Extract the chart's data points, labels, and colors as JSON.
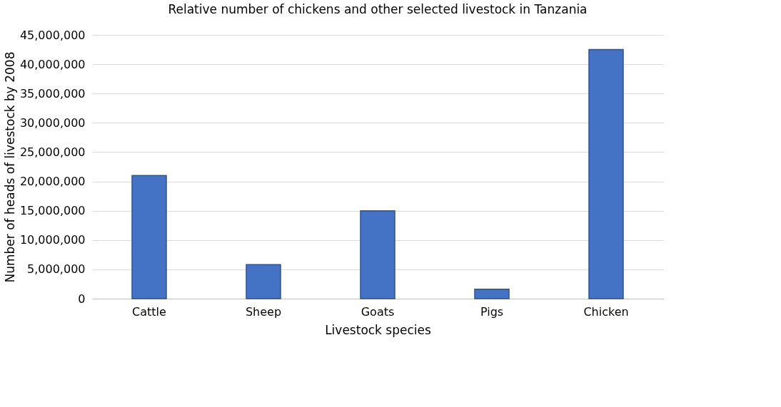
{
  "chart_data": {
    "type": "bar",
    "title": "Relative number of chickens and other selected livestock in Tanzania",
    "xlabel": "Livestock species",
    "ylabel": "Number of heads of livestock by 2008",
    "categories": [
      "Cattle",
      "Sheep",
      "Goats",
      "Pigs",
      "Chicken"
    ],
    "values": [
      21000000,
      5800000,
      15000000,
      1600000,
      42500000
    ],
    "color": "#4472c4",
    "ylim": [
      0,
      45000000
    ],
    "yticks": [
      0,
      {
        "value": 5000000,
        "label": "5,000,000"
      },
      {
        "value": 10000000,
        "label": "10,000,000"
      },
      {
        "value": 15000000,
        "label": "15,000,000"
      },
      {
        "value": 20000000,
        "label": "20,000,000"
      },
      {
        "value": 25000000,
        "label": "25,000,000"
      },
      {
        "value": 30000000,
        "label": "30,000,000"
      },
      {
        "value": 35000000,
        "label": "35,000,000"
      },
      {
        "value": 40000000,
        "label": "40,000,000"
      },
      {
        "value": 45000000,
        "label": "45,000,000"
      }
    ],
    "grid": "y"
  }
}
